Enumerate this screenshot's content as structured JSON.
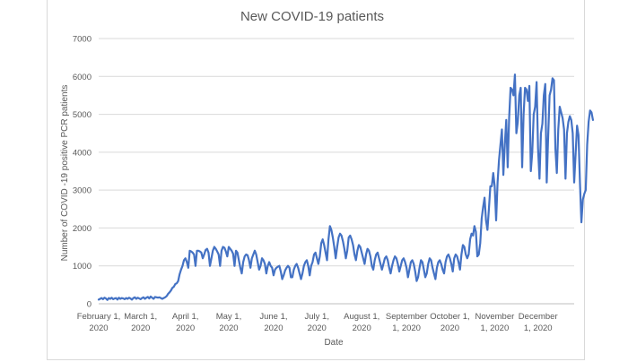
{
  "chart_data": {
    "type": "line",
    "title": "New COVID-19 patients",
    "xlabel": "Date",
    "ylabel": "Number of COVID -19 positive PCR patients",
    "ylim": [
      0,
      7000
    ],
    "yticks": [
      "0",
      "1000",
      "2000",
      "3000",
      "4000",
      "5000",
      "6000",
      "7000"
    ],
    "grid": true,
    "line_color": "#4472c4",
    "x_tick_labels": [
      {
        "day": 0,
        "line1": "February 1,",
        "line2": "2020"
      },
      {
        "day": 29,
        "line1": "March 1,",
        "line2": "2020"
      },
      {
        "day": 60,
        "line1": "April 1,",
        "line2": "2020"
      },
      {
        "day": 90,
        "line1": "May 1,",
        "line2": "2020"
      },
      {
        "day": 121,
        "line1": "June 1,",
        "line2": "2020"
      },
      {
        "day": 151,
        "line1": "July 1,",
        "line2": "2020"
      },
      {
        "day": 182,
        "line1": "August 1,",
        "line2": "2020"
      },
      {
        "day": 213,
        "line1": "September",
        "line2": "1, 2020"
      },
      {
        "day": 243,
        "line1": "October 1,",
        "line2": "2020"
      },
      {
        "day": 274,
        "line1": "November",
        "line2": "1, 2020"
      },
      {
        "day": 304,
        "line1": "December",
        "line2": "1, 2020"
      }
    ],
    "series": [
      {
        "name": "New COVID-19 patients",
        "x_start_day": 0,
        "values": [
          110,
          130,
          150,
          120,
          160,
          140,
          100,
          150,
          130,
          160,
          120,
          140,
          150,
          110,
          160,
          130,
          150,
          140,
          120,
          150,
          130,
          160,
          140,
          110,
          150,
          170,
          130,
          160,
          140,
          120,
          150,
          170,
          130,
          160,
          180,
          140,
          190,
          160,
          130,
          180,
          170,
          160,
          170,
          150,
          130,
          150,
          170,
          200,
          260,
          300,
          350,
          420,
          450,
          520,
          540,
          600,
          780,
          900,
          1000,
          1150,
          1200,
          1100,
          950,
          1400,
          1380,
          1350,
          1300,
          1000,
          1400,
          1400,
          1380,
          1350,
          1200,
          1300,
          1420,
          1450,
          1350,
          1000,
          1200,
          1400,
          1500,
          1450,
          1380,
          1300,
          1000,
          1400,
          1500,
          1480,
          1380,
          1250,
          1500,
          1450,
          1400,
          1320,
          1000,
          1400,
          1350,
          1150,
          950,
          800,
          1100,
          1250,
          1300,
          1280,
          1150,
          950,
          1200,
          1300,
          1400,
          1300,
          1100,
          900,
          1000,
          1200,
          1150,
          1050,
          800,
          1000,
          1100,
          1000,
          950,
          750,
          900,
          950,
          980,
          1000,
          850,
          650,
          750,
          880,
          950,
          1000,
          950,
          700,
          700,
          900,
          1000,
          1050,
          950,
          800,
          650,
          800,
          1000,
          1100,
          1150,
          1000,
          750,
          1000,
          1100,
          1300,
          1350,
          1200,
          1050,
          1250,
          1600,
          1700,
          1550,
          1350,
          1150,
          1700,
          2050,
          1950,
          1750,
          1500,
          1200,
          1500,
          1750,
          1850,
          1800,
          1650,
          1450,
          1200,
          1400,
          1750,
          1800,
          1700,
          1550,
          1300,
          1150,
          1400,
          1550,
          1500,
          1350,
          1200,
          1050,
          1300,
          1450,
          1400,
          1250,
          1000,
          900,
          1150,
          1300,
          1350,
          1200,
          1050,
          900,
          1050,
          1200,
          1250,
          1150,
          950,
          800,
          1000,
          1150,
          1250,
          1200,
          1050,
          850,
          1000,
          1150,
          1200,
          1100,
          950,
          700,
          900,
          1100,
          1150,
          1050,
          850,
          600,
          700,
          950,
          1150,
          1100,
          900,
          700,
          800,
          1050,
          1200,
          1150,
          950,
          800,
          650,
          950,
          1100,
          1150,
          1050,
          900,
          800,
          1100,
          1250,
          1300,
          1200,
          1050,
          850,
          1200,
          1300,
          1250,
          1100,
          900,
          1300,
          1550,
          1500,
          1300,
          1200,
          1300,
          1700,
          1850,
          1800,
          2050,
          1900,
          1250,
          1300,
          1600,
          2250,
          2550,
          2800,
          2200,
          1950,
          2500,
          3100,
          3100,
          3450,
          3100,
          2200,
          3200,
          3800,
          4200,
          4600,
          3400,
          4200,
          4850,
          3600,
          4900,
          5700,
          5650,
          5500,
          6050,
          4500,
          4800,
          5500,
          5700,
          3600,
          5000,
          5700,
          5650,
          5350,
          5750,
          3500,
          4000,
          5000,
          5200,
          5850,
          4100,
          3300,
          4500,
          4750,
          5500,
          5800,
          3200,
          4400,
          5500,
          5650,
          5950,
          5900,
          4100,
          3450,
          4600,
          5200,
          5050,
          4900,
          4600,
          3300,
          4500,
          4800,
          4950,
          4850,
          4500,
          3200,
          3950,
          4700,
          4450,
          3200,
          2150,
          2750,
          2900,
          3000,
          4200,
          4800,
          5100,
          5050,
          4850
        ]
      }
    ]
  }
}
